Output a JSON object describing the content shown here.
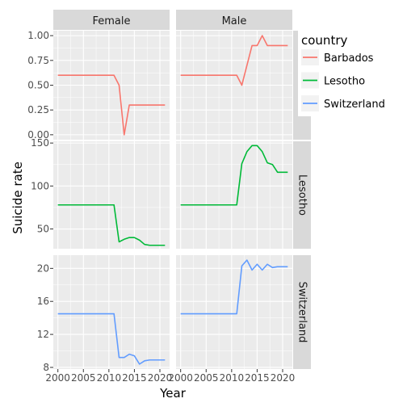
{
  "chart_data": {
    "type": "line",
    "xlabel": "Year",
    "ylabel": "Suicide rate",
    "facet_cols": [
      "Female",
      "Male"
    ],
    "facet_rows": [
      "Barbados",
      "Lesotho",
      "Switzerland"
    ],
    "x_ticks": [
      2000,
      2005,
      2010,
      2015,
      2020
    ],
    "xlim": [
      1999.1,
      2021.9
    ],
    "grid": true,
    "legend_position": "right",
    "legend": {
      "title": "country",
      "items": [
        {
          "label": "Barbados",
          "color": "#F8766D"
        },
        {
          "label": "Lesotho",
          "color": "#00BA38"
        },
        {
          "label": "Switzerland",
          "color": "#619CFF"
        }
      ]
    },
    "panels": [
      {
        "row": "Barbados",
        "ylim": [
          -0.05,
          1.05
        ],
        "y_ticks": [
          "0.00",
          "0.25",
          "0.50",
          "0.75",
          "1.00"
        ],
        "series": [
          {
            "sex": "Female",
            "x": [
              2000,
              2001,
              2002,
              2003,
              2004,
              2005,
              2006,
              2007,
              2008,
              2009,
              2010,
              2011,
              2012,
              2013,
              2014,
              2015,
              2016,
              2017,
              2018,
              2019,
              2020,
              2021
            ],
            "y": [
              0.6,
              0.6,
              0.6,
              0.6,
              0.6,
              0.6,
              0.6,
              0.6,
              0.6,
              0.6,
              0.6,
              0.6,
              0.5,
              0.0,
              0.3,
              0.3,
              0.3,
              0.3,
              0.3,
              0.3,
              0.3,
              0.3
            ]
          },
          {
            "sex": "Male",
            "x": [
              2000,
              2001,
              2002,
              2003,
              2004,
              2005,
              2006,
              2007,
              2008,
              2009,
              2010,
              2011,
              2012,
              2013,
              2014,
              2015,
              2016,
              2017,
              2018,
              2019,
              2020,
              2021
            ],
            "y": [
              0.6,
              0.6,
              0.6,
              0.6,
              0.6,
              0.6,
              0.6,
              0.6,
              0.6,
              0.6,
              0.6,
              0.6,
              0.5,
              0.7,
              0.9,
              0.9,
              1.0,
              0.9,
              0.9,
              0.9,
              0.9,
              0.9
            ]
          }
        ]
      },
      {
        "row": "Lesotho",
        "ylim": [
          27,
          152
        ],
        "y_ticks": [
          "50",
          "100",
          "150"
        ],
        "series": [
          {
            "sex": "Female",
            "x": [
              2000,
              2001,
              2002,
              2003,
              2004,
              2005,
              2006,
              2007,
              2008,
              2009,
              2010,
              2011,
              2012,
              2013,
              2014,
              2015,
              2016,
              2017,
              2018,
              2019,
              2020,
              2021
            ],
            "y": [
              78,
              78,
              78,
              78,
              78,
              78,
              78,
              78,
              78,
              78,
              78,
              78,
              35,
              38,
              40,
              40,
              37,
              32,
              31,
              31,
              31,
              31
            ]
          },
          {
            "sex": "Male",
            "x": [
              2000,
              2001,
              2002,
              2003,
              2004,
              2005,
              2006,
              2007,
              2008,
              2009,
              2010,
              2011,
              2012,
              2013,
              2014,
              2015,
              2016,
              2017,
              2018,
              2019,
              2020,
              2021
            ],
            "y": [
              78,
              78,
              78,
              78,
              78,
              78,
              78,
              78,
              78,
              78,
              78,
              78,
              126,
              140,
              147,
              147,
              140,
              127,
              125,
              116,
              116,
              116
            ]
          }
        ]
      },
      {
        "row": "Switzerland",
        "ylim": [
          7.8,
          21.6
        ],
        "y_ticks": [
          "8",
          "12",
          "16",
          "20"
        ],
        "series": [
          {
            "sex": "Female",
            "x": [
              2000,
              2001,
              2002,
              2003,
              2004,
              2005,
              2006,
              2007,
              2008,
              2009,
              2010,
              2011,
              2012,
              2013,
              2014,
              2015,
              2016,
              2017,
              2018,
              2019,
              2020,
              2021
            ],
            "y": [
              14.5,
              14.5,
              14.5,
              14.5,
              14.5,
              14.5,
              14.5,
              14.5,
              14.5,
              14.5,
              14.5,
              14.5,
              9.2,
              9.2,
              9.6,
              9.4,
              8.4,
              8.8,
              8.9,
              8.9,
              8.9,
              8.9
            ]
          },
          {
            "sex": "Male",
            "x": [
              2000,
              2001,
              2002,
              2003,
              2004,
              2005,
              2006,
              2007,
              2008,
              2009,
              2010,
              2011,
              2012,
              2013,
              2014,
              2015,
              2016,
              2017,
              2018,
              2019,
              2020,
              2021
            ],
            "y": [
              14.5,
              14.5,
              14.5,
              14.5,
              14.5,
              14.5,
              14.5,
              14.5,
              14.5,
              14.5,
              14.5,
              14.5,
              20.3,
              21.0,
              19.8,
              20.5,
              19.8,
              20.5,
              20.1,
              20.2,
              20.2,
              20.2
            ]
          }
        ]
      }
    ]
  }
}
